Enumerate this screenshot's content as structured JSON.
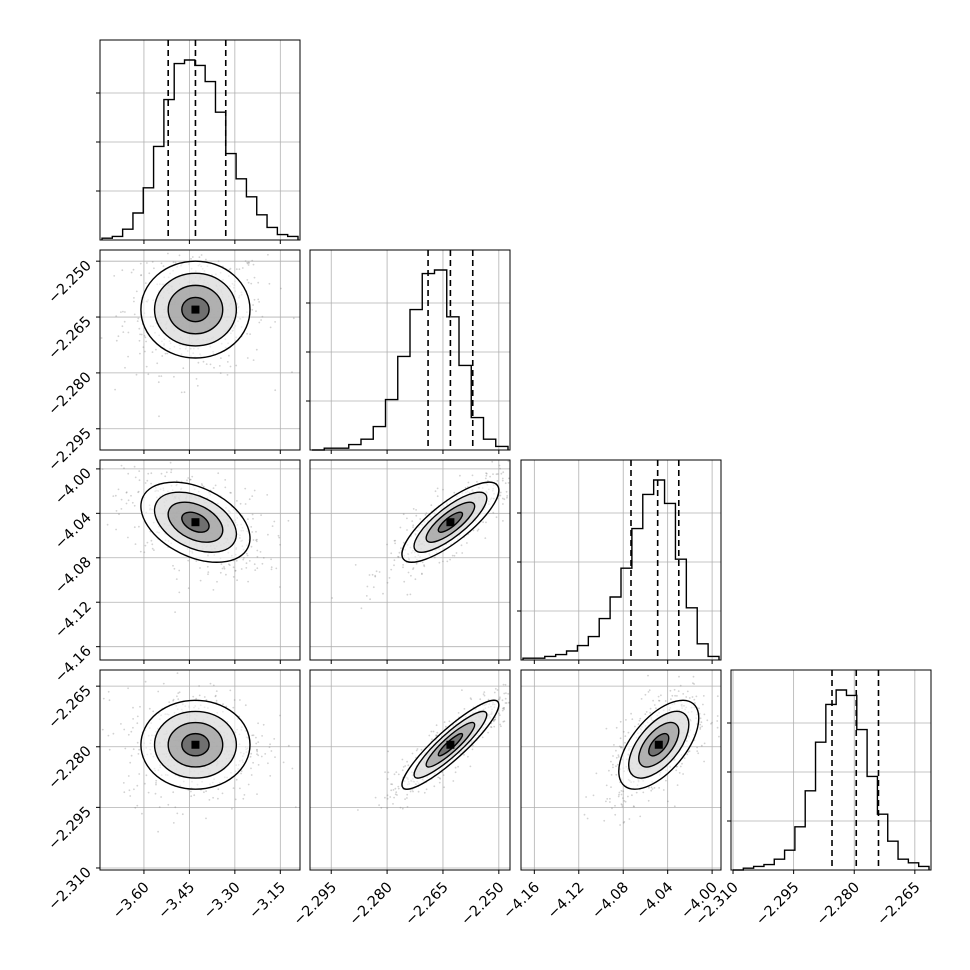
{
  "chart_data": {
    "type": "corner",
    "grid": true,
    "n_params": 4,
    "colors": {
      "line": "#000000",
      "grid": "#b0b0b0",
      "scatter": "#7f7f7f"
    },
    "parameters": [
      {
        "range": [
          -3.745,
          -3.085
        ],
        "ticks": [
          -3.6,
          -3.45,
          -3.3,
          -3.15
        ],
        "tick_labels": [
          "−3.60",
          "−3.45",
          "−3.30",
          "−3.15"
        ],
        "mean": -3.43,
        "sigma": 0.09,
        "quantiles": [
          -3.52,
          -3.43,
          -3.33
        ]
      },
      {
        "range": [
          -2.3007,
          -2.247
        ],
        "ticks": [
          -2.295,
          -2.28,
          -2.265,
          -2.25
        ],
        "tick_labels": [
          "−2.295",
          "−2.280",
          "−2.265",
          "−2.250"
        ],
        "mean": -2.263,
        "sigma": 0.0065,
        "quantiles": [
          -2.269,
          -2.263,
          -2.257
        ]
      },
      {
        "range": [
          -4.172,
          -3.992
        ],
        "ticks": [
          -4.16,
          -4.12,
          -4.08,
          -4.04,
          -4.0
        ],
        "tick_labels": [
          "−4.16",
          "−4.12",
          "−4.08",
          "−4.04",
          "−4.00"
        ],
        "mean": -4.048,
        "sigma": 0.018,
        "quantiles": [
          -4.073,
          -4.049,
          -4.03
        ]
      },
      {
        "range": [
          -2.3105,
          -2.261
        ],
        "ticks": [
          -2.31,
          -2.295,
          -2.28,
          -2.265
        ],
        "tick_labels": [
          "−2.310",
          "−2.295",
          "−2.280",
          "−2.265"
        ],
        "mean": -2.2795,
        "sigma": 0.0055,
        "quantiles": [
          -2.2855,
          -2.2795,
          -2.274
        ]
      }
    ],
    "correlations": [
      {
        "i": 1,
        "j": 0,
        "rho": 0.0
      },
      {
        "i": 2,
        "j": 0,
        "rho": -0.4
      },
      {
        "i": 2,
        "j": 1,
        "rho": 0.8
      },
      {
        "i": 3,
        "j": 0,
        "rho": 0.0
      },
      {
        "i": 3,
        "j": 1,
        "rho": 0.9
      },
      {
        "i": 3,
        "j": 2,
        "rho": 0.6
      }
    ],
    "histograms": [
      {
        "param": 0,
        "counts": [
          0.01,
          0.02,
          0.06,
          0.15,
          0.29,
          0.52,
          0.78,
          0.98,
          1.0,
          0.97,
          0.88,
          0.71,
          0.48,
          0.34,
          0.24,
          0.14,
          0.07,
          0.03,
          0.02
        ]
      },
      {
        "param": 1,
        "counts": [
          0.0,
          0.01,
          0.01,
          0.03,
          0.06,
          0.13,
          0.28,
          0.52,
          0.78,
          0.98,
          1.0,
          0.74,
          0.47,
          0.18,
          0.06,
          0.02
        ]
      },
      {
        "param": 2,
        "counts": [
          0.01,
          0.01,
          0.02,
          0.03,
          0.05,
          0.08,
          0.13,
          0.23,
          0.35,
          0.51,
          0.73,
          0.92,
          1.0,
          0.87,
          0.56,
          0.29,
          0.09,
          0.02
        ]
      },
      {
        "param": 3,
        "counts": [
          0.0,
          0.01,
          0.02,
          0.03,
          0.06,
          0.11,
          0.24,
          0.44,
          0.71,
          0.92,
          1.0,
          0.97,
          0.78,
          0.52,
          0.31,
          0.16,
          0.06,
          0.04,
          0.02
        ]
      }
    ]
  }
}
